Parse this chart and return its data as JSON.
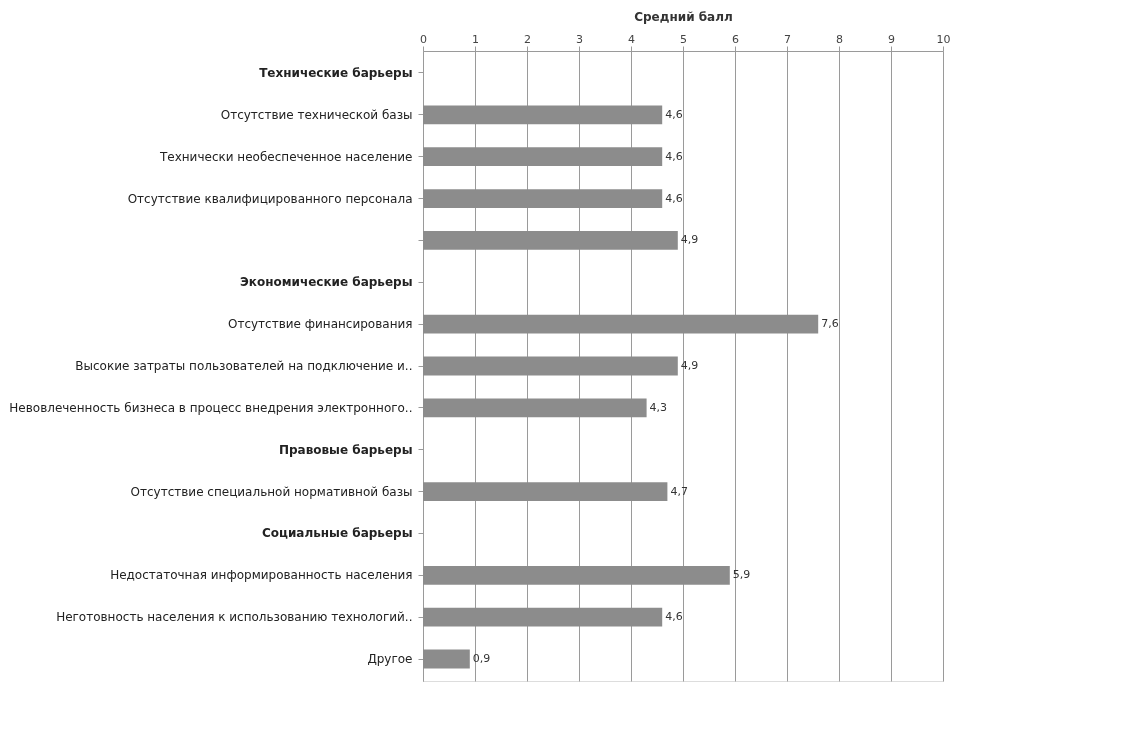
{
  "chart_data": {
    "type": "bar",
    "orientation": "horizontal",
    "xlabel": "Средний балл",
    "categories": [
      "Технические барьеры",
      "Отсутствие технической базы",
      "Технически необеспеченное население",
      "Отсутствие квалифицированного персонала",
      null,
      "Экономические барьеры",
      "Отсутствие финансирования",
      "Высокие затраты пользователей на подключение и..",
      "Невовлеченность бизнеса в процесс внедрения электронного..",
      "Правовые барьеры",
      "Отсутствие специальной нормативной базы",
      "Социальные барьеры",
      "Недостаточная информированность населения",
      "Неготовность населения к использованию технологий..",
      "Другое"
    ],
    "values": [
      null,
      4.6,
      4.6,
      4.6,
      4.9,
      null,
      7.6,
      4.9,
      4.3,
      null,
      4.7,
      null,
      5.9,
      4.6,
      0.9
    ],
    "value_labels": [
      null,
      "4,6",
      "4,6",
      "4,6",
      "4,9",
      null,
      "7,6",
      "4,9",
      "4,3",
      null,
      "4,7",
      null,
      "5,9",
      "4,6",
      "0,9"
    ],
    "color": "#8c8c8c",
    "xlim": [
      0,
      10
    ],
    "xticks": [
      0,
      1,
      2,
      3,
      4,
      5,
      6,
      7,
      8,
      9,
      10
    ],
    "grid": "x"
  }
}
